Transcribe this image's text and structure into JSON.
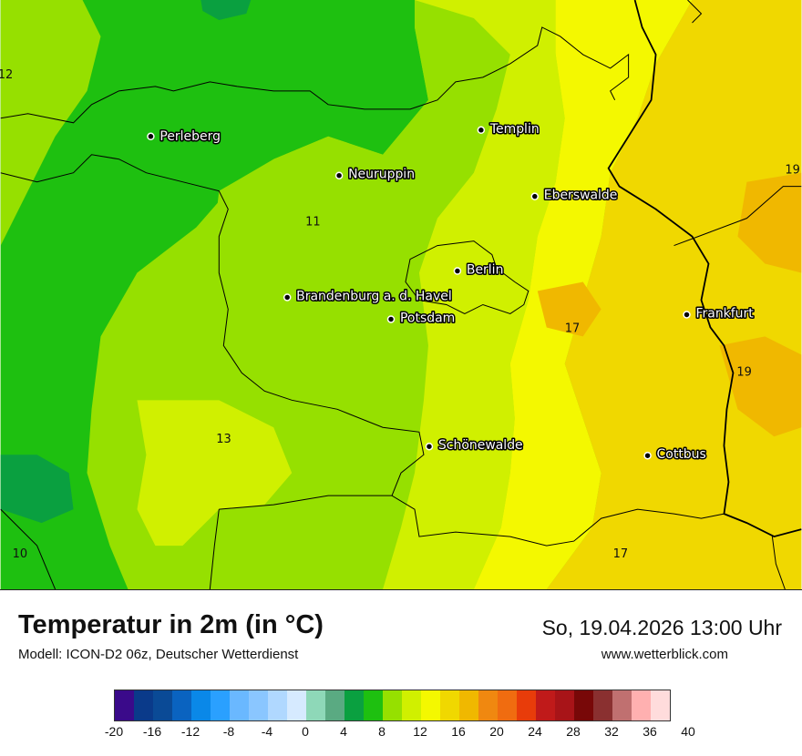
{
  "map": {
    "cities": [
      {
        "name": "Perleberg"
      },
      {
        "name": "Templin"
      },
      {
        "name": "Neuruppin"
      },
      {
        "name": "Eberswalde"
      },
      {
        "name": "Berlin"
      },
      {
        "name": "Brandenburg a. d. Havel"
      },
      {
        "name": "Potsdam"
      },
      {
        "name": "Frankfurt"
      },
      {
        "name": "Schönewalde"
      },
      {
        "name": "Cottbus"
      }
    ],
    "value_labels": [
      "12",
      "11",
      "19",
      "17",
      "19",
      "13",
      "17",
      "10"
    ]
  },
  "header": {
    "title": "Temperatur in 2m (in °C)",
    "subtitle": "Modell: ICON-D2 06z, Deutscher Wetterdienst",
    "datetime": "So, 19.04.2026 13:00 Uhr",
    "website": "www.wetterblick.com"
  },
  "legend": {
    "colors": [
      "#3a0a8a",
      "#0a3a8a",
      "#0a4a96",
      "#0a63c0",
      "#0a88e8",
      "#2aa0ff",
      "#6ab8ff",
      "#8ac6ff",
      "#b0d8ff",
      "#d6eaff",
      "#8ed8b8",
      "#5aaa82",
      "#0aa040",
      "#1ec010",
      "#96e000",
      "#d0f000",
      "#f4f800",
      "#f0d800",
      "#f0b800",
      "#f08810",
      "#f06c10",
      "#e83c0a",
      "#c01a1a",
      "#a81418",
      "#780808",
      "#8a3030",
      "#c07070",
      "#ffb0b0",
      "#ffdcdc"
    ],
    "ticks": [
      "-20",
      "-16",
      "-12",
      "-8",
      "-4",
      "0",
      "4",
      "8",
      "12",
      "16",
      "20",
      "24",
      "28",
      "32",
      "36",
      "40"
    ]
  }
}
